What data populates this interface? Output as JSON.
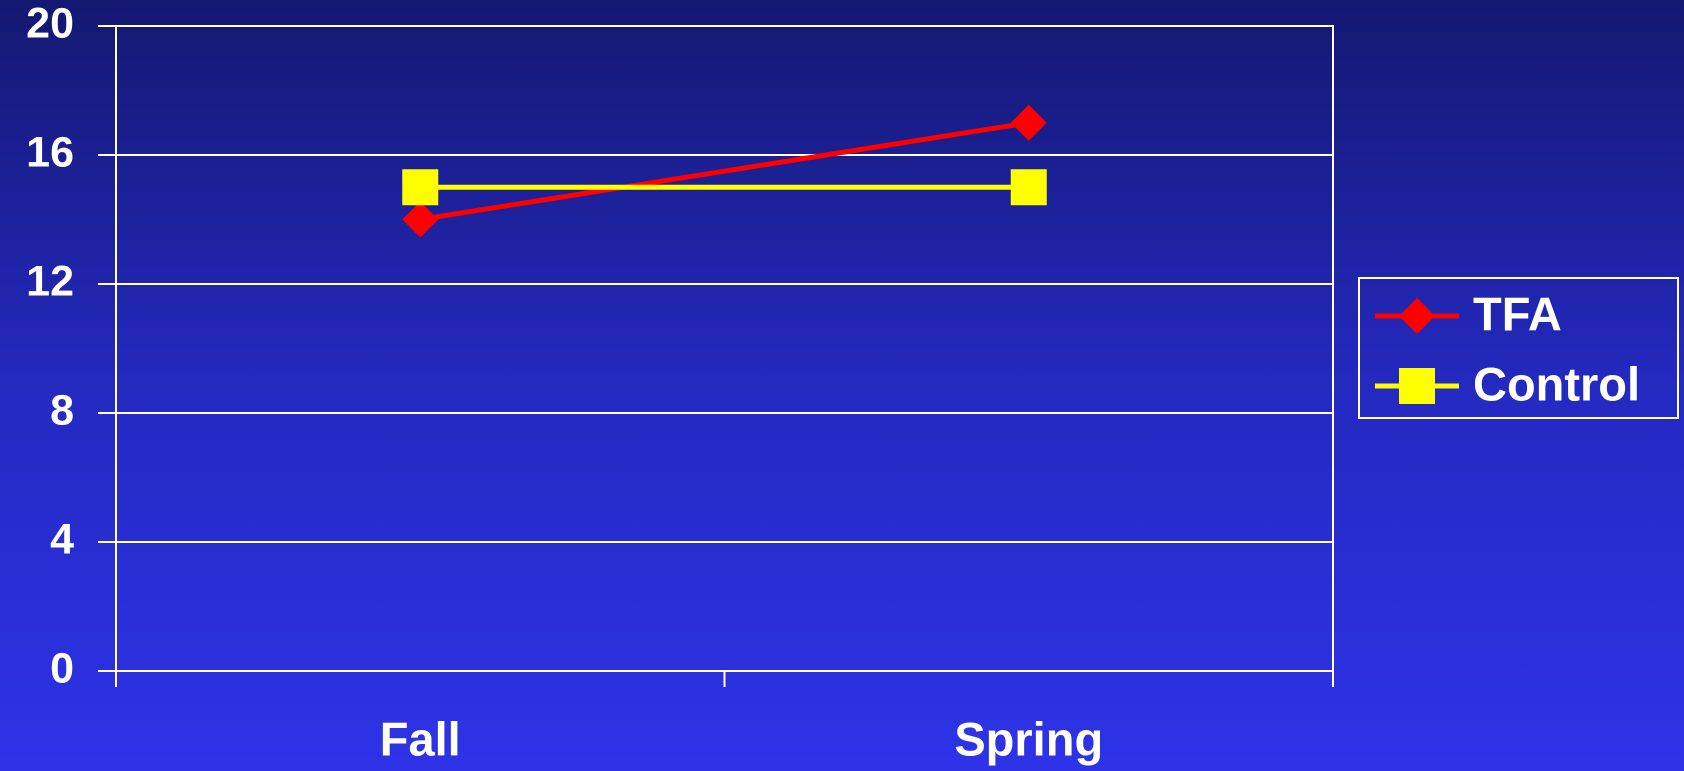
{
  "chart_data": {
    "type": "line",
    "categories": [
      "Fall",
      "Spring"
    ],
    "series": [
      {
        "name": "TFA",
        "color": "#ff0000",
        "marker": "diamond",
        "values": [
          14,
          17
        ]
      },
      {
        "name": "Control",
        "color": "#ffff00",
        "marker": "square",
        "values": [
          15,
          15
        ]
      }
    ],
    "ylim": [
      0,
      20
    ],
    "yticks": [
      0,
      4,
      8,
      12,
      16,
      20
    ],
    "grid": true,
    "legend": "right"
  }
}
